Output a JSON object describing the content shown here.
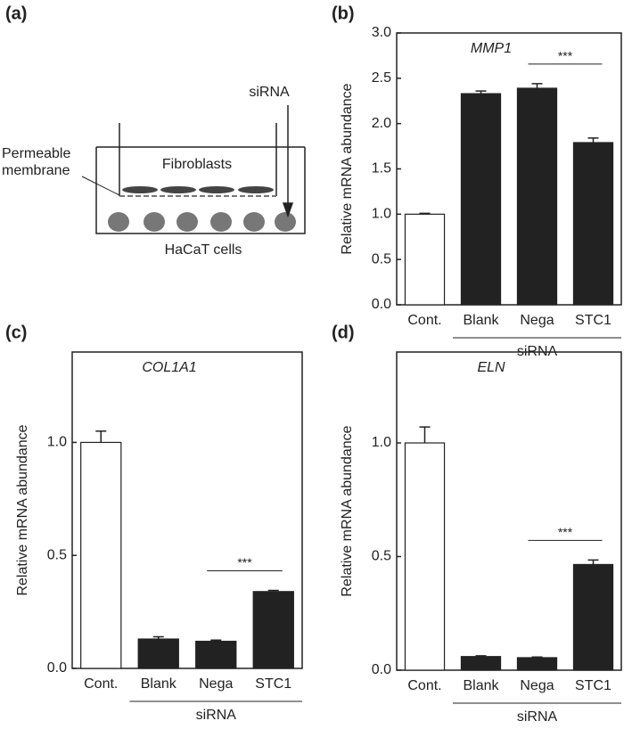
{
  "diagram": {
    "label": "(a)",
    "siRNA": "siRNA",
    "membrane_line1": "Permeable",
    "membrane_line2": "membrane",
    "fibroblasts": "Fibroblasts",
    "hacat": "HaCaT cells"
  },
  "chart_data": [
    {
      "type": "bar",
      "label": "(b)",
      "title": "MMP1",
      "y_label": "Relative mRNA abundance",
      "categories": [
        "Cont.",
        "Blank",
        "Nega",
        "STC1"
      ],
      "values": [
        1.0,
        2.33,
        2.39,
        1.79
      ],
      "errors": [
        0.01,
        0.03,
        0.05,
        0.05
      ],
      "colors": [
        "#ffffff",
        "#222222",
        "#222222",
        "#222222"
      ],
      "ylim": [
        0,
        3
      ],
      "yticks": [
        {
          "value": 0,
          "label": "0.0"
        },
        {
          "value": 0.5,
          "label": "0.5"
        },
        {
          "value": 1,
          "label": "1.0"
        },
        {
          "value": 1.5,
          "label": "1.5"
        },
        {
          "value": 2,
          "label": "2.0"
        },
        {
          "value": 2.5,
          "label": "2.5"
        },
        {
          "value": 3,
          "label": "3.0"
        }
      ],
      "group_label": "siRNA",
      "group_span": [
        "Blank",
        "STC1"
      ],
      "annotations": [
        {
          "text": "***",
          "between": [
            "Nega",
            "STC1"
          ]
        }
      ]
    },
    {
      "type": "bar",
      "label": "(c)",
      "title": "COL1A1",
      "y_label": "Relative mRNA abundance",
      "categories": [
        "Cont.",
        "Blank",
        "Nega",
        "STC1"
      ],
      "values": [
        1.0,
        0.13,
        0.12,
        0.34
      ],
      "errors": [
        0.05,
        0.01,
        0.005,
        0.005
      ],
      "colors": [
        "#ffffff",
        "#222222",
        "#222222",
        "#222222"
      ],
      "ylim": [
        0,
        1.4
      ],
      "yticks": [
        {
          "value": 0,
          "label": "0.0"
        },
        {
          "value": 0.5,
          "label": "0.5"
        },
        {
          "value": 1,
          "label": "1.0"
        }
      ],
      "group_label": "siRNA",
      "group_span": [
        "Blank",
        "STC1"
      ],
      "annotations": [
        {
          "text": "***",
          "between": [
            "Nega",
            "STC1"
          ]
        }
      ]
    },
    {
      "type": "bar",
      "label": "(d)",
      "title": "ELN",
      "y_label": "Relative mRNA abundance",
      "categories": [
        "Cont.",
        "Blank",
        "Nega",
        "STC1"
      ],
      "values": [
        1.0,
        0.06,
        0.055,
        0.465
      ],
      "errors": [
        0.07,
        0.003,
        0.003,
        0.02
      ],
      "colors": [
        "#ffffff",
        "#222222",
        "#222222",
        "#222222"
      ],
      "ylim": [
        0,
        1.4
      ],
      "yticks": [
        {
          "value": 0,
          "label": "0.0"
        },
        {
          "value": 0.5,
          "label": "0.5"
        },
        {
          "value": 1,
          "label": "1.0"
        }
      ],
      "group_label": "siRNA",
      "group_span": [
        "Blank",
        "STC1"
      ],
      "annotations": [
        {
          "text": "***",
          "between": [
            "Nega",
            "STC1"
          ]
        }
      ]
    }
  ]
}
